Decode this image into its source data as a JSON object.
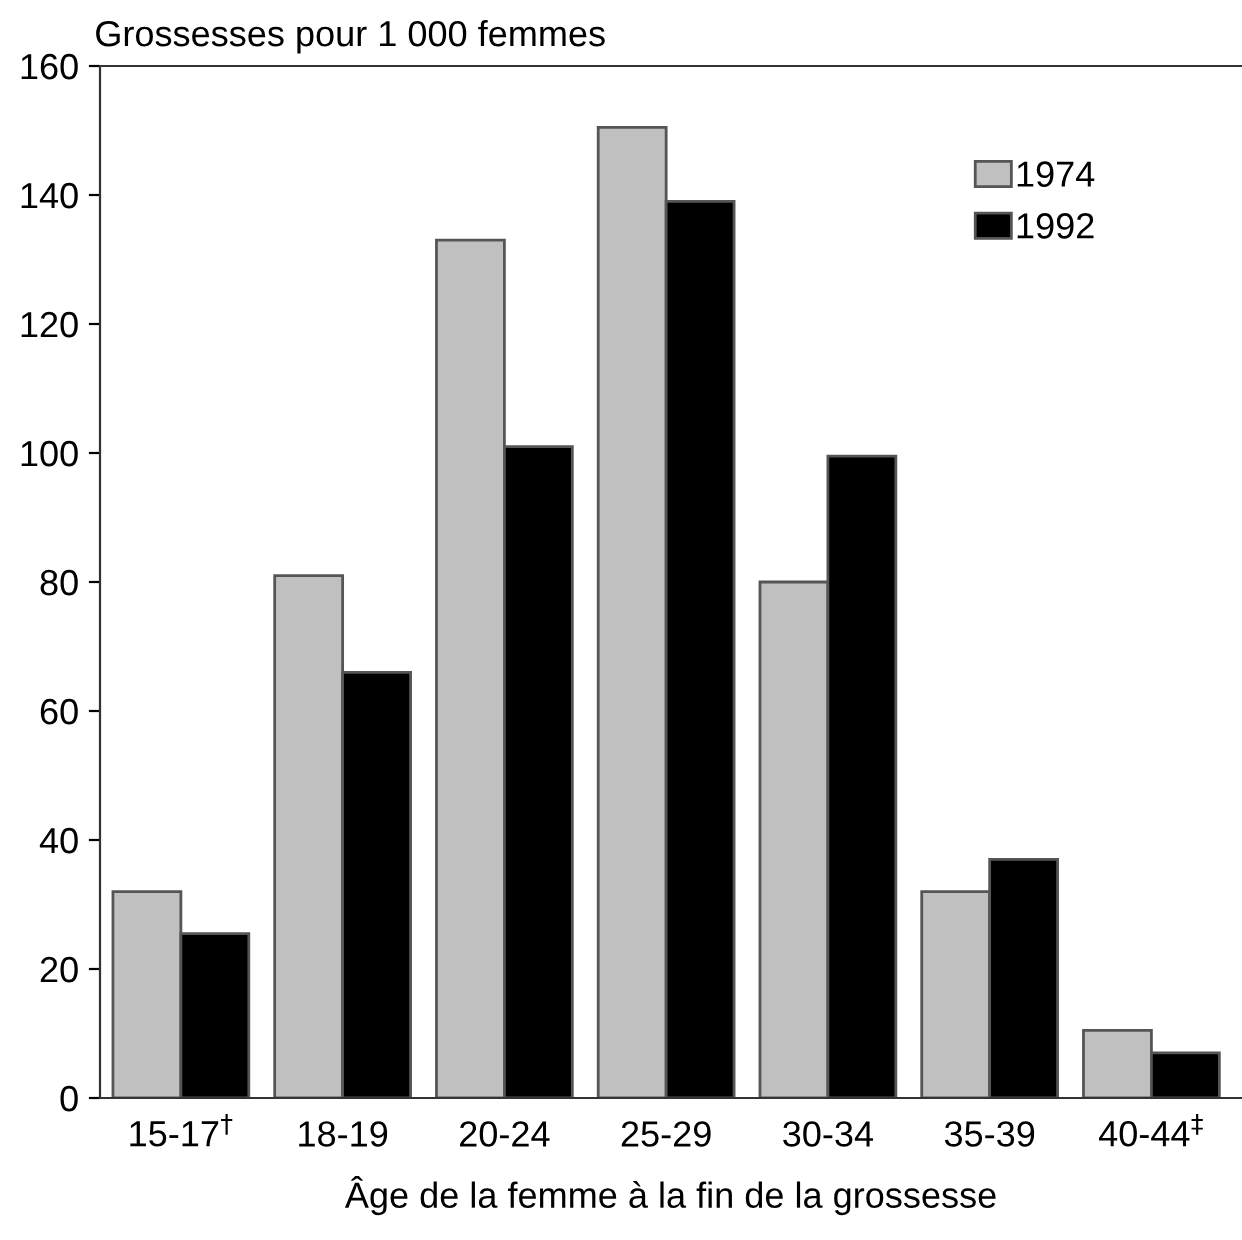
{
  "chart_data": {
    "type": "bar",
    "ylabel": "Grossesses pour 1 000 femmes",
    "xlabel": "Âge de la femme à la fin de la grossesse",
    "categories": [
      "15-17$^{†}$",
      "18-19",
      "20-24",
      "25-29",
      "30-34",
      "35-39",
      "40-44$^{‡}$"
    ],
    "series": [
      {
        "name": "1974",
        "color": "#c0c0c0",
        "values": [
          32,
          81,
          133,
          150.5,
          80,
          32,
          10.5
        ]
      },
      {
        "name": "1992",
        "color": "#000000",
        "values": [
          25.5,
          66,
          101,
          139,
          99.5,
          37,
          7
        ]
      }
    ],
    "ylim": [
      0,
      160
    ],
    "yticks": [
      0,
      20,
      40,
      60,
      80,
      100,
      120,
      140,
      160
    ],
    "grid": false,
    "legend": "top right"
  }
}
